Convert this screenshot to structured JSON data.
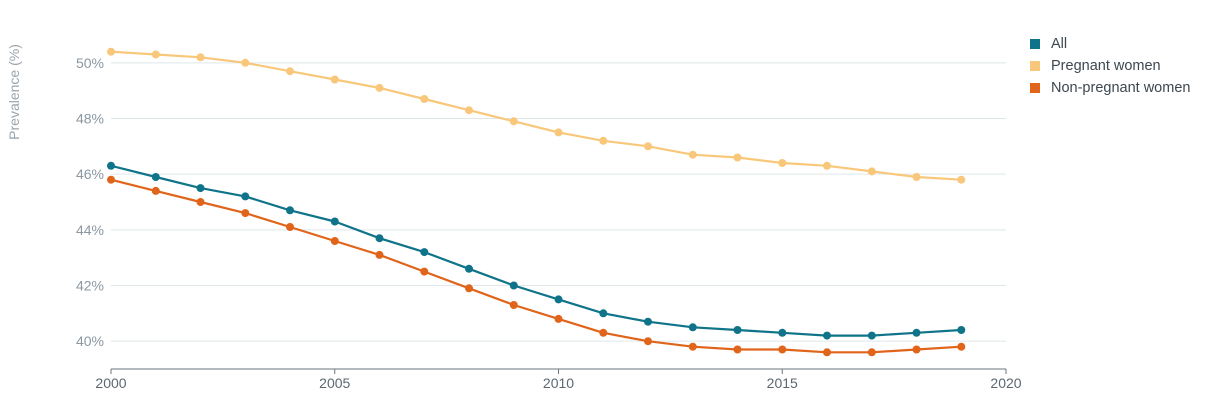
{
  "chart_data": {
    "type": "line",
    "ylabel": "Prevalence (%)",
    "xlabel": "",
    "xlim": [
      2000,
      2020
    ],
    "ylim": [
      39,
      51
    ],
    "xticks": [
      2000,
      2005,
      2010,
      2015,
      2020
    ],
    "yticks": [
      40,
      42,
      44,
      46,
      48,
      50
    ],
    "ytick_suffix": "%",
    "grid": "horizontal",
    "legend_position": "top-right",
    "x": [
      2000,
      2001,
      2002,
      2003,
      2004,
      2005,
      2006,
      2007,
      2008,
      2009,
      2010,
      2011,
      2012,
      2013,
      2014,
      2015,
      2016,
      2017,
      2018,
      2019
    ],
    "series": [
      {
        "name": "All",
        "color": "#0f7489",
        "values": [
          46.3,
          45.9,
          45.5,
          45.2,
          44.7,
          44.3,
          43.7,
          43.2,
          42.6,
          42.0,
          41.5,
          41.0,
          40.7,
          40.5,
          40.4,
          40.3,
          40.2,
          40.2,
          40.3,
          40.4
        ]
      },
      {
        "name": "Pregnant women",
        "color": "#f9c77a",
        "values": [
          50.4,
          50.3,
          50.2,
          50.0,
          49.7,
          49.4,
          49.1,
          48.7,
          48.3,
          47.9,
          47.5,
          47.2,
          47.0,
          46.7,
          46.6,
          46.4,
          46.3,
          46.1,
          45.9,
          45.8
        ]
      },
      {
        "name": "Non-pregnant women",
        "color": "#e0641a",
        "values": [
          45.8,
          45.4,
          45.0,
          44.6,
          44.1,
          43.6,
          43.1,
          42.5,
          41.9,
          41.3,
          40.8,
          40.3,
          40.0,
          39.8,
          39.7,
          39.7,
          39.6,
          39.6,
          39.7,
          39.8
        ]
      }
    ]
  }
}
